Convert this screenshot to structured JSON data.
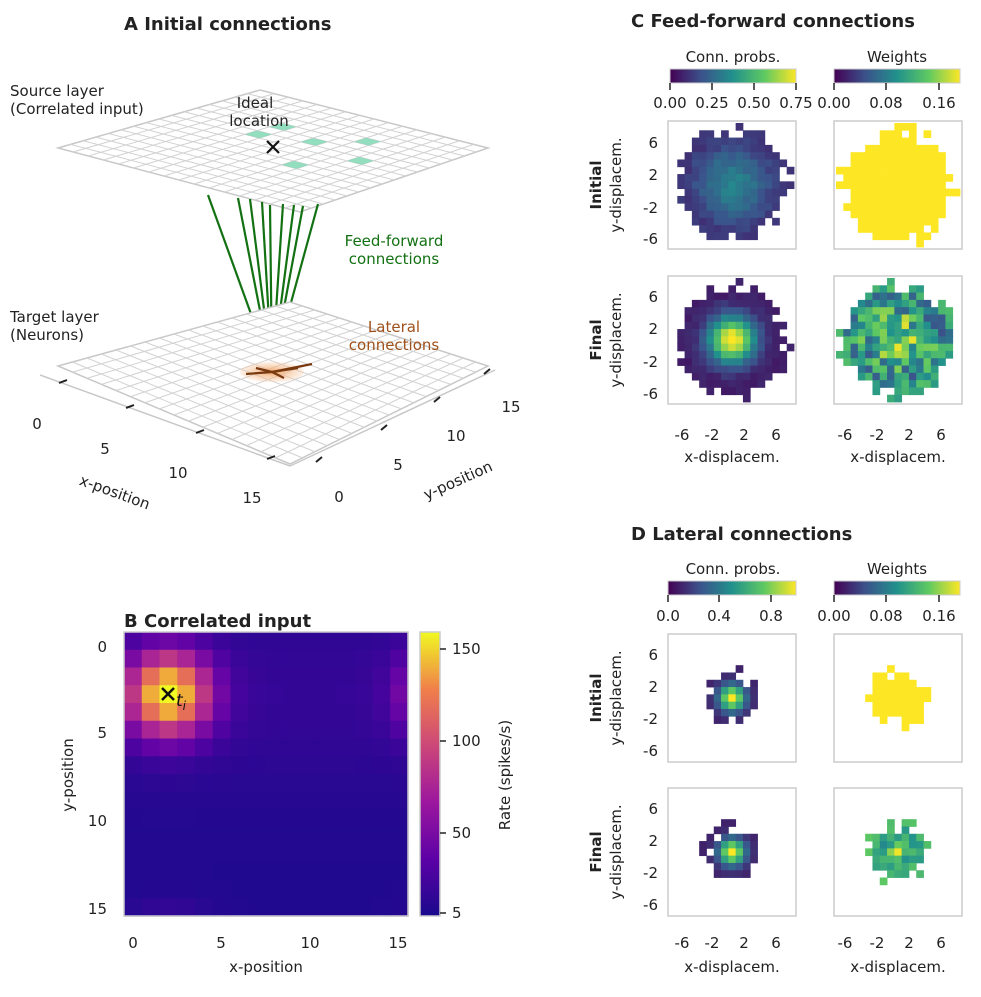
{
  "panel_a": {
    "title": "A Initial connections",
    "source_layer": [
      "Source layer",
      "(Correlated input)"
    ],
    "ideal_location": [
      "Ideal",
      "location"
    ],
    "feedforward": [
      "Feed-forward",
      "connections"
    ],
    "target_layer": [
      "Target layer",
      "(Neurons)"
    ],
    "lateral": [
      "Lateral",
      "connections"
    ],
    "x_label": "x-position",
    "y_label": "y-position",
    "x_ticks": [
      "0",
      "5",
      "10",
      "15"
    ],
    "y_ticks": [
      "0",
      "5",
      "10",
      "15"
    ],
    "colors": {
      "feedforward": "#137113",
      "lateral": "#a0501a",
      "source_cell": "#7fd8b4"
    }
  },
  "panel_b": {
    "title": "B Correlated input",
    "x_label": "x-position",
    "y_label": "y-position",
    "x_ticks": [
      "0",
      "5",
      "10",
      "15"
    ],
    "y_ticks": [
      "0",
      "5",
      "10",
      "15"
    ],
    "colorbar_label": "Rate (spikes/s)",
    "colorbar_ticks": [
      "5",
      "50",
      "100",
      "150"
    ],
    "marker_label": "t",
    "marker_sub": "i"
  },
  "panel_c": {
    "title": "C Feed-forward connections",
    "cb1_label": "Conn. probs.",
    "cb1_ticks": [
      "0.00",
      "0.25",
      "0.50",
      "0.75"
    ],
    "cb2_label": "Weights",
    "cb2_ticks": [
      "0.00",
      "0.08",
      "0.16"
    ],
    "row_initial": "Initial",
    "row_final": "Final",
    "y_label": "y-displacem.",
    "x_label": "x-displacem.",
    "y_ticks": [
      "6",
      "2",
      "-2",
      "-6"
    ],
    "x_ticks": [
      "-6",
      "-2",
      "2",
      "6"
    ]
  },
  "panel_d": {
    "title": "D Lateral connections",
    "cb1_label": "Conn. probs.",
    "cb1_ticks": [
      "0.0",
      "0.4",
      "0.8"
    ],
    "cb2_label": "Weights",
    "cb2_ticks": [
      "0.00",
      "0.08",
      "0.16"
    ],
    "row_initial": "Initial",
    "row_final": "Final",
    "y_label": "y-displacem.",
    "x_label": "x-displacem.",
    "y_ticks": [
      "6",
      "2",
      "-2",
      "-6"
    ],
    "x_ticks": [
      "-6",
      "-2",
      "2",
      "6"
    ]
  }
}
